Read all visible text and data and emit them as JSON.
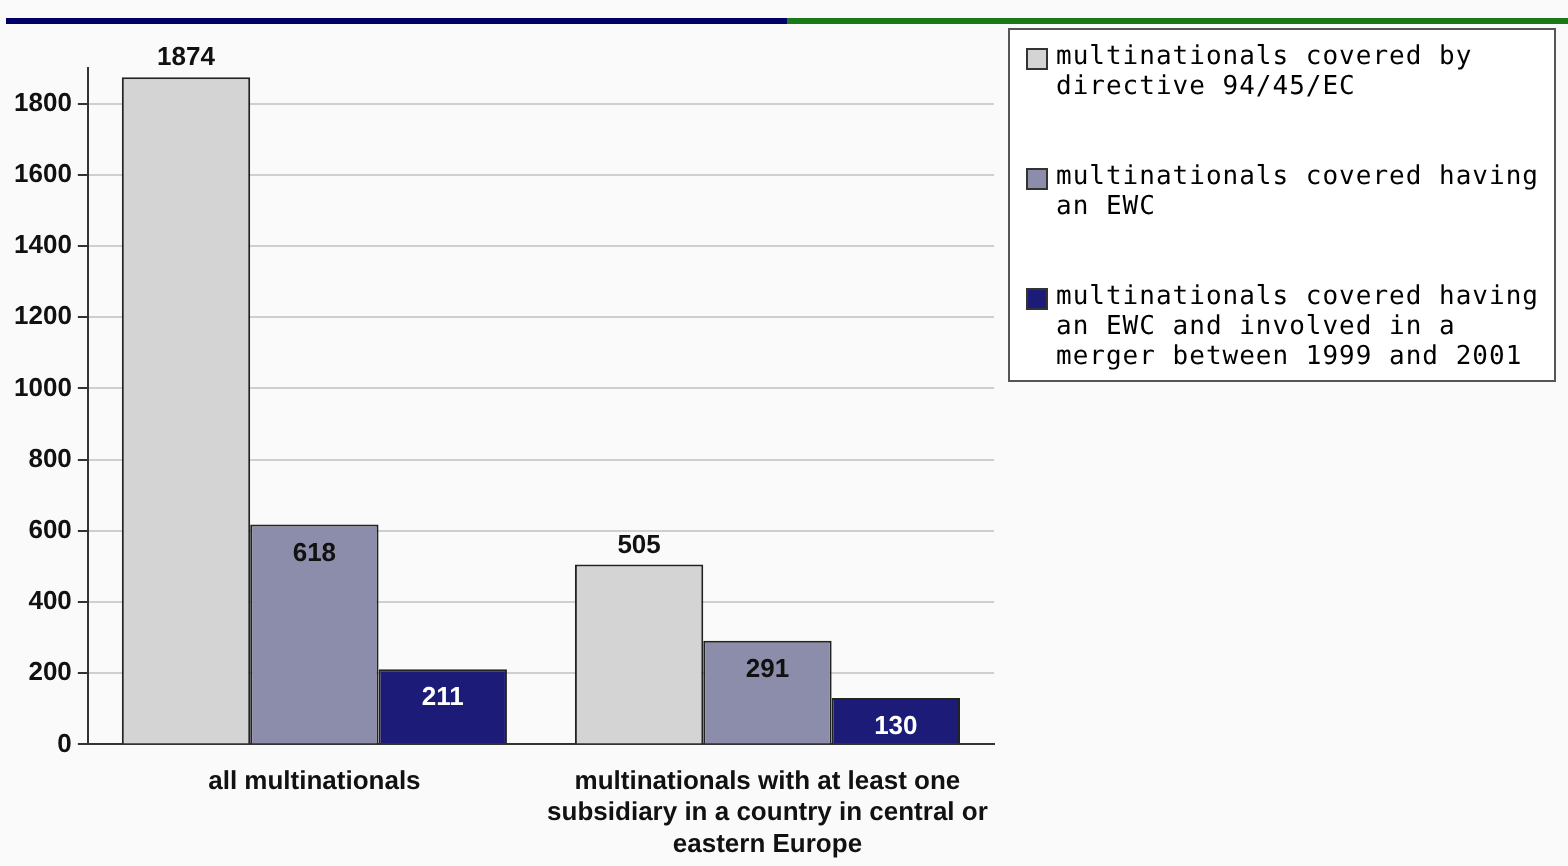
{
  "chart_data": {
    "type": "bar",
    "categories": [
      "all multinationals",
      "multinationals with at least one subsidiary in a country in central or eastern Europe"
    ],
    "series": [
      {
        "name": "multinationals covered by directive 94/45/EC",
        "color": "#d4d4d4",
        "values": [
          1874,
          505
        ]
      },
      {
        "name": "multinationals covered having an EWC",
        "color": "#8c8cab",
        "values": [
          618,
          291
        ]
      },
      {
        "name": "multinationals covered having an EWC and involved in a merger between 1999 and 2001",
        "color": "#1c1c78",
        "values": [
          211,
          130
        ]
      }
    ],
    "ylim": [
      0,
      1900
    ],
    "yticks": [
      0,
      200,
      400,
      600,
      800,
      1000,
      1200,
      1400,
      1600,
      1800
    ],
    "grid": "y",
    "legend": "top right",
    "data_labels": true
  }
}
